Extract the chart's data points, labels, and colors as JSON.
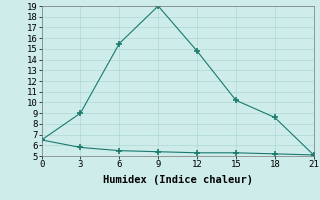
{
  "line1_x": [
    0,
    3,
    6,
    9,
    12,
    15,
    18,
    21
  ],
  "line1_y": [
    6.5,
    9.0,
    15.5,
    19.0,
    14.8,
    10.2,
    8.6,
    5.1
  ],
  "line2_x": [
    0,
    3,
    6,
    9,
    12,
    15,
    18,
    21
  ],
  "line2_y": [
    6.5,
    5.8,
    5.5,
    5.4,
    5.3,
    5.3,
    5.2,
    5.1
  ],
  "line_color": "#1a7a6e",
  "marker": "+",
  "marker_size": 4,
  "marker_lw": 1.2,
  "line_width": 0.8,
  "background_color": "#ceecea",
  "grid_color": "#aed8d4",
  "xlabel": "Humidex (Indice chaleur)",
  "xlim": [
    0,
    21
  ],
  "ylim": [
    5,
    19
  ],
  "xticks": [
    0,
    3,
    6,
    9,
    12,
    15,
    18,
    21
  ],
  "yticks": [
    5,
    6,
    7,
    8,
    9,
    10,
    11,
    12,
    13,
    14,
    15,
    16,
    17,
    18,
    19
  ],
  "font_size": 6.5,
  "xlabel_font_size": 7.5
}
